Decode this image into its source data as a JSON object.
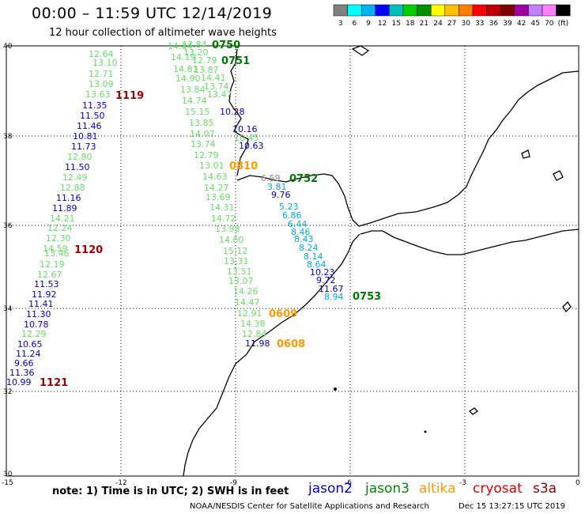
{
  "title": "00:00 – 11:59 UTC 12/14/2019",
  "subtitle": "12 hour collection of altimeter wave heights",
  "legend": {
    "colors": [
      "#808080",
      "#00ffff",
      "#00b0f0",
      "#0000ff",
      "#00c0c0",
      "#00d000",
      "#009000",
      "#ffff00",
      "#ffc000",
      "#ff8000",
      "#ff0000",
      "#c00000",
      "#800000",
      "#a000a0",
      "#c080ff",
      "#ff80ff",
      "#000000"
    ],
    "labels": [
      "3",
      "6",
      "9",
      "12",
      "15",
      "18",
      "21",
      "24",
      "27",
      "30",
      "33",
      "36",
      "39",
      "42",
      "45",
      "70",
      "(ft)"
    ]
  },
  "axes": {
    "lon_ticks": [
      "-15",
      "-12",
      "-9",
      "-6",
      "-3",
      "0"
    ],
    "lat_ticks": [
      "40",
      "38",
      "36",
      "34",
      "32",
      "30"
    ]
  },
  "note": "note: 1) Time is in UTC; 2) SWH is in feet",
  "satellites": [
    {
      "name": "jason2",
      "color": "#0000cc"
    },
    {
      "name": "jason3",
      "color": "#008800"
    },
    {
      "name": "altika",
      "color": "#ff9900"
    },
    {
      "name": "cryosat",
      "color": "#dd0000"
    },
    {
      "name": "s3a",
      "color": "#880000"
    }
  ],
  "credit": "NOAA/NESDIS Center for Satellite Applications and Research",
  "timestamp": "Dec 15 13:27:15 UTC 2019",
  "colors": {
    "light_green": "#66dd66",
    "dark_blue": "#0000bb",
    "cyan": "#00aadd",
    "grey": "#888888",
    "dark_green": "#007700",
    "orange": "#ff9900",
    "maroon": "#990000"
  },
  "track_times": [
    {
      "text": "0750",
      "color": "#007700"
    },
    {
      "text": "0751",
      "color": "#007700"
    },
    {
      "text": "1119",
      "color": "#990000"
    },
    {
      "text": "0810",
      "color": "#ff9900"
    },
    {
      "text": "0752",
      "color": "#007700"
    },
    {
      "text": "1120",
      "color": "#990000"
    },
    {
      "text": "0753",
      "color": "#007700"
    },
    {
      "text": "0609",
      "color": "#ff9900"
    },
    {
      "text": "0608",
      "color": "#ff9900"
    },
    {
      "text": "1121",
      "color": "#990000"
    }
  ],
  "measurements": [
    {
      "text": "12.64",
      "color": "#66dd66"
    },
    {
      "text": "13.10",
      "color": "#66dd66"
    },
    {
      "text": "12.71",
      "color": "#66dd66"
    },
    {
      "text": "13.09",
      "color": "#66dd66"
    },
    {
      "text": "13.63",
      "color": "#66dd66"
    },
    {
      "text": "11.35",
      "color": "#0000bb"
    },
    {
      "text": "11.50",
      "color": "#0000bb"
    },
    {
      "text": "11.46",
      "color": "#0000bb"
    },
    {
      "text": "10.81",
      "color": "#0000bb"
    },
    {
      "text": "11.73",
      "color": "#0000bb"
    },
    {
      "text": "12.80",
      "color": "#66dd66"
    },
    {
      "text": "11.50",
      "color": "#0000bb"
    },
    {
      "text": "12.49",
      "color": "#66dd66"
    },
    {
      "text": "12.88",
      "color": "#66dd66"
    },
    {
      "text": "11.16",
      "color": "#0000bb"
    },
    {
      "text": "11.89",
      "color": "#0000bb"
    },
    {
      "text": "14.21",
      "color": "#66dd66"
    },
    {
      "text": "12.24",
      "color": "#66dd66"
    },
    {
      "text": "12.30",
      "color": "#66dd66"
    },
    {
      "text": "14.59",
      "color": "#66dd66"
    },
    {
      "text": "13.46",
      "color": "#66dd66"
    },
    {
      "text": "12.19",
      "color": "#66dd66"
    },
    {
      "text": "12.67",
      "color": "#66dd66"
    },
    {
      "text": "11.53",
      "color": "#0000bb"
    },
    {
      "text": "11.92",
      "color": "#0000bb"
    },
    {
      "text": "11.41",
      "color": "#0000bb"
    },
    {
      "text": "11.30",
      "color": "#0000bb"
    },
    {
      "text": "10.78",
      "color": "#0000bb"
    },
    {
      "text": "12.29",
      "color": "#66dd66"
    },
    {
      "text": "10.65",
      "color": "#0000bb"
    },
    {
      "text": "11.24",
      "color": "#0000bb"
    },
    {
      "text": "9.66",
      "color": "#0000bb"
    },
    {
      "text": "11.36",
      "color": "#0000bb"
    },
    {
      "text": "10.99",
      "color": "#0000bb"
    },
    {
      "text": "13.84",
      "color": "#66dd66"
    },
    {
      "text": "14.84",
      "color": "#66dd66"
    },
    {
      "text": "13.20",
      "color": "#66dd66"
    },
    {
      "text": "14.19",
      "color": "#66dd66"
    },
    {
      "text": "12.79",
      "color": "#66dd66"
    },
    {
      "text": "14.81",
      "color": "#66dd66"
    },
    {
      "text": "13.87",
      "color": "#66dd66"
    },
    {
      "text": "14.90",
      "color": "#66dd66"
    },
    {
      "text": "14.41",
      "color": "#66dd66"
    },
    {
      "text": "13.84",
      "color": "#66dd66"
    },
    {
      "text": "13.74",
      "color": "#66dd66"
    },
    {
      "text": "14.74",
      "color": "#66dd66"
    },
    {
      "text": "13.47",
      "color": "#66dd66"
    },
    {
      "text": "15.15",
      "color": "#66dd66"
    },
    {
      "text": "10.28",
      "color": "#0000bb"
    },
    {
      "text": "13.85",
      "color": "#66dd66"
    },
    {
      "text": "10.16",
      "color": "#0000bb"
    },
    {
      "text": "14.07",
      "color": "#66dd66"
    },
    {
      "text": "10.45",
      "color": "#66dd66"
    },
    {
      "text": "13.74",
      "color": "#66dd66"
    },
    {
      "text": "10.63",
      "color": "#0000bb"
    },
    {
      "text": "12.79",
      "color": "#66dd66"
    },
    {
      "text": "13.01",
      "color": "#66dd66"
    },
    {
      "text": "14.63",
      "color": "#66dd66"
    },
    {
      "text": "14.27",
      "color": "#66dd66"
    },
    {
      "text": "13.69",
      "color": "#66dd66"
    },
    {
      "text": "14.31",
      "color": "#66dd66"
    },
    {
      "text": "14.72",
      "color": "#66dd66"
    },
    {
      "text": "13.98",
      "color": "#66dd66"
    },
    {
      "text": "14.00",
      "color": "#66dd66"
    },
    {
      "text": "15.12",
      "color": "#66dd66"
    },
    {
      "text": "13.31",
      "color": "#66dd66"
    },
    {
      "text": "13.51",
      "color": "#66dd66"
    },
    {
      "text": "13.07",
      "color": "#66dd66"
    },
    {
      "text": "14.26",
      "color": "#66dd66"
    },
    {
      "text": "14.47",
      "color": "#66dd66"
    },
    {
      "text": "12.91",
      "color": "#66dd66"
    },
    {
      "text": "14.38",
      "color": "#66dd66"
    },
    {
      "text": "12.84",
      "color": "#66dd66"
    },
    {
      "text": "11.98",
      "color": "#0000bb"
    },
    {
      "text": "6.59",
      "color": "#888888"
    },
    {
      "text": "3.81",
      "color": "#00aadd"
    },
    {
      "text": "9.76",
      "color": "#0000bb"
    },
    {
      "text": "5.23",
      "color": "#00aadd"
    },
    {
      "text": "6.86",
      "color": "#00aadd"
    },
    {
      "text": "6.44",
      "color": "#00aadd"
    },
    {
      "text": "8.46",
      "color": "#00aadd"
    },
    {
      "text": "8.43",
      "color": "#00aadd"
    },
    {
      "text": "8.24",
      "color": "#00aadd"
    },
    {
      "text": "8.14",
      "color": "#00aadd"
    },
    {
      "text": "8.64",
      "color": "#00aadd"
    },
    {
      "text": "10.23",
      "color": "#0000bb"
    },
    {
      "text": "9.72",
      "color": "#0000bb"
    },
    {
      "text": "11.67",
      "color": "#0000bb"
    },
    {
      "text": "8.94",
      "color": "#00aadd"
    }
  ]
}
